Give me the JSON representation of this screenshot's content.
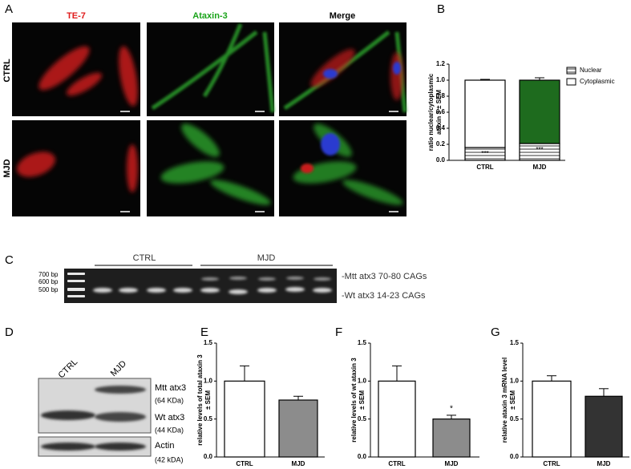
{
  "figure": {
    "panel_labels": [
      "A",
      "B",
      "C",
      "D",
      "E",
      "F",
      "G"
    ],
    "microscopy": {
      "columns": [
        "TE-7",
        "Ataxin-3",
        "Merge"
      ],
      "rows": [
        "CTRL",
        "MJD"
      ]
    },
    "gel": {
      "groups": [
        "CTRL",
        "MJD"
      ],
      "ladder": [
        "700 bp",
        "600 bp",
        "500 bp"
      ],
      "bands": [
        "-Mtt atx3 70-80 CAGs",
        "-Wt atx3 14-23 CAGs"
      ]
    },
    "blot": {
      "lanes": [
        "CTRL",
        "MJD"
      ],
      "bands": [
        {
          "name": "Mtt atx3",
          "size": "(64 KDa)"
        },
        {
          "name": "Wt atx3",
          "size": "(44 KDa)"
        },
        {
          "name": "Actin",
          "size": "(42 kDA)"
        }
      ]
    }
  },
  "chart_data": [
    {
      "type": "stacked_bar",
      "ylabel": [
        "ratio nuclear/cytoplasmic",
        "ataxin 3 ± SEM"
      ],
      "categories": [
        "CTRL",
        "MJD"
      ],
      "series": [
        {
          "name": "Nuclear",
          "pattern": "hatch",
          "values": [
            0.16,
            0.21
          ],
          "annotations": [
            "***",
            "***"
          ]
        },
        {
          "name": "Cytoplasmic",
          "color": "#ffffff",
          "colors": [
            "#ffffff",
            "#1e6b1e"
          ],
          "values": [
            0.84,
            0.79
          ],
          "errors": [
            0.01,
            0.03
          ]
        }
      ],
      "ylim": [
        0,
        1.2
      ],
      "yticks": [
        {
          "value": 0,
          "label": "0.0"
        },
        0.2,
        0.4,
        0.6,
        0.8,
        {
          "value": 1,
          "label": "1.0"
        },
        1.2
      ],
      "legend": "upper right"
    },
    {
      "type": "bar",
      "ylabel": [
        "relative levels of total ataxin 3",
        "± SEM"
      ],
      "categories": [
        "CTRL",
        "MJD"
      ],
      "values": [
        1.0,
        0.75
      ],
      "errors": [
        0.2,
        0.05
      ],
      "colors": [
        "#ffffff",
        "#8c8c8c"
      ],
      "ylim": [
        0,
        1.5
      ],
      "yticks": [
        {
          "value": 0,
          "label": "0.0"
        },
        0.5,
        {
          "value": 1,
          "label": "1.0"
        },
        1.5
      ]
    },
    {
      "type": "bar",
      "ylabel": [
        "relative levels of wt ataxin 3",
        "± SEM"
      ],
      "categories": [
        "CTRL",
        "MJD"
      ],
      "values": [
        1.0,
        0.5
      ],
      "errors": [
        0.2,
        0.05
      ],
      "colors": [
        "#ffffff",
        "#8c8c8c"
      ],
      "annotations": [
        null,
        "*"
      ],
      "ylim": [
        0,
        1.5
      ],
      "yticks": [
        {
          "value": 0,
          "label": "0.0"
        },
        0.5,
        {
          "value": 1,
          "label": "1.0"
        },
        1.5
      ]
    },
    {
      "type": "bar",
      "ylabel": [
        "relative ataxin 3 mRNA level",
        "± SEM"
      ],
      "categories": [
        "CTRL",
        "MJD"
      ],
      "values": [
        1.0,
        0.8
      ],
      "errors": [
        0.07,
        0.1
      ],
      "colors": [
        "#ffffff",
        "#333333"
      ],
      "ylim": [
        0,
        1.5
      ],
      "yticks": [
        {
          "value": 0,
          "label": "0.0"
        },
        0.5,
        {
          "value": 1,
          "label": "1.0"
        },
        1.5
      ]
    }
  ]
}
